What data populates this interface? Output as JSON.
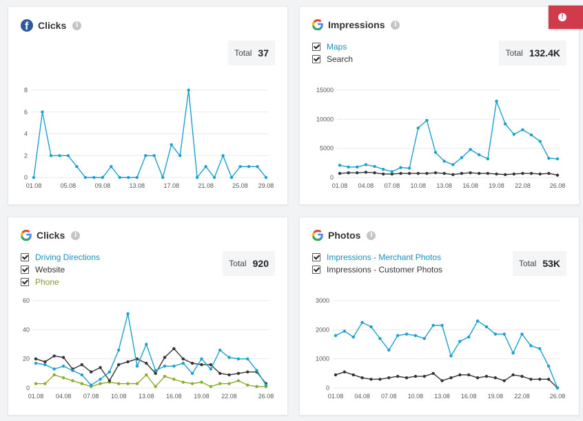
{
  "panels": [
    {
      "id": "fb-clicks",
      "source": "facebook",
      "title": "Clicks",
      "total_label": "Total",
      "total_value": "37",
      "legend": []
    },
    {
      "id": "g-impressions",
      "source": "google",
      "title": "Impressions",
      "total_label": "Total",
      "total_value": "132.4K",
      "legend": [
        {
          "label": "Maps",
          "color": "#1a9fce"
        },
        {
          "label": "Search",
          "color": "#333333"
        }
      ]
    },
    {
      "id": "g-clicks",
      "source": "google",
      "title": "Clicks",
      "total_label": "Total",
      "total_value": "920",
      "legend": [
        {
          "label": "Driving Directions",
          "color": "#1a9fce"
        },
        {
          "label": "Website",
          "color": "#333333"
        },
        {
          "label": "Phone",
          "color": "#8aac2c"
        }
      ]
    },
    {
      "id": "g-photos",
      "source": "google",
      "title": "Photos",
      "total_label": "Total",
      "total_value": "53K",
      "legend": [
        {
          "label": "Impressions - Merchant Photos",
          "color": "#1a9fce"
        },
        {
          "label": "Impressions - Customer Photos",
          "color": "#333333"
        }
      ]
    }
  ],
  "chart_data": [
    {
      "type": "line",
      "title": "Clicks",
      "ylim": [
        0,
        8
      ],
      "yticks": [
        0,
        2,
        4,
        6,
        8
      ],
      "x_tick_labels": [
        "01.08",
        "05.08",
        "09.08",
        "13.08",
        "17.08",
        "21.08",
        "25.08",
        "29.08"
      ],
      "x_tick_every": 4,
      "series": [
        {
          "name": "Clicks",
          "color": "#1a9fce",
          "values": [
            0,
            6,
            2,
            2,
            2,
            1,
            0,
            0,
            0,
            1,
            0,
            0,
            0,
            2,
            2,
            0,
            3,
            2,
            8,
            0,
            1,
            0,
            2,
            0,
            1,
            1,
            1,
            0
          ]
        }
      ]
    },
    {
      "type": "line",
      "title": "Impressions",
      "ylim": [
        0,
        15000
      ],
      "yticks": [
        0,
        5000,
        10000,
        15000
      ],
      "x_tick_labels": [
        "01.08",
        "04.08",
        "07.08",
        "10.08",
        "13.08",
        "16.08",
        "19.08",
        "22.08",
        "26.08"
      ],
      "x_tick_every": 3,
      "series": [
        {
          "name": "Maps",
          "color": "#1a9fce",
          "values": [
            2100,
            1800,
            1800,
            2200,
            1900,
            1400,
            1000,
            1700,
            1600,
            8500,
            9800,
            4300,
            2800,
            2200,
            3400,
            4800,
            3900,
            3200,
            13100,
            9200,
            7400,
            8200,
            7300,
            6200,
            3300,
            3200
          ]
        },
        {
          "name": "Search",
          "color": "#333333",
          "values": [
            700,
            800,
            800,
            900,
            800,
            600,
            600,
            700,
            700,
            700,
            700,
            800,
            700,
            500,
            700,
            800,
            700,
            700,
            600,
            500,
            600,
            700,
            700,
            600,
            700,
            400
          ]
        }
      ]
    },
    {
      "type": "line",
      "title": "Clicks",
      "ylim": [
        0,
        60
      ],
      "yticks": [
        0,
        20,
        40,
        60
      ],
      "x_tick_labels": [
        "01.08",
        "04.08",
        "07.08",
        "10.08",
        "13.08",
        "16.08",
        "19.08",
        "22.08",
        "26.08"
      ],
      "x_tick_every": 3,
      "series": [
        {
          "name": "Driving Directions",
          "color": "#1a9fce",
          "values": [
            17,
            16,
            13,
            15,
            12,
            9,
            2,
            6,
            11,
            26,
            51,
            15,
            30,
            12,
            15,
            15,
            17,
            10,
            20,
            13,
            26,
            21,
            20,
            20,
            12,
            2
          ]
        },
        {
          "name": "Website",
          "color": "#333333",
          "values": [
            20,
            18,
            22,
            21,
            13,
            16,
            11,
            14,
            5,
            16,
            18,
            20,
            17,
            10,
            21,
            27,
            20,
            17,
            16,
            16,
            10,
            9,
            10,
            11,
            11,
            3
          ]
        },
        {
          "name": "Phone",
          "color": "#8aac2c",
          "values": [
            3,
            3,
            9,
            7,
            5,
            3,
            1,
            3,
            4,
            3,
            3,
            3,
            9,
            1,
            8,
            6,
            4,
            3,
            4,
            1,
            3,
            3,
            5,
            2,
            1,
            1
          ]
        }
      ]
    },
    {
      "type": "line",
      "title": "Photos",
      "ylim": [
        0,
        3000
      ],
      "yticks": [
        0,
        1000,
        2000,
        3000
      ],
      "x_tick_labels": [
        "01.08",
        "04.08",
        "07.08",
        "10.08",
        "13.08",
        "16.08",
        "19.08",
        "22.08",
        "26.08"
      ],
      "x_tick_every": 3,
      "series": [
        {
          "name": "Impressions - Merchant Photos",
          "color": "#1a9fce",
          "values": [
            1800,
            1950,
            1750,
            2250,
            2100,
            1700,
            1300,
            1800,
            1850,
            1800,
            1700,
            2150,
            2150,
            1100,
            1600,
            1750,
            2300,
            2100,
            1850,
            1850,
            1200,
            1850,
            1450,
            1350,
            750,
            0
          ]
        },
        {
          "name": "Impressions - Customer Photos",
          "color": "#333333",
          "values": [
            450,
            550,
            450,
            350,
            300,
            300,
            350,
            400,
            350,
            400,
            400,
            500,
            250,
            350,
            450,
            450,
            350,
            400,
            350,
            250,
            450,
            400,
            300,
            300,
            300,
            0
          ]
        }
      ]
    }
  ]
}
